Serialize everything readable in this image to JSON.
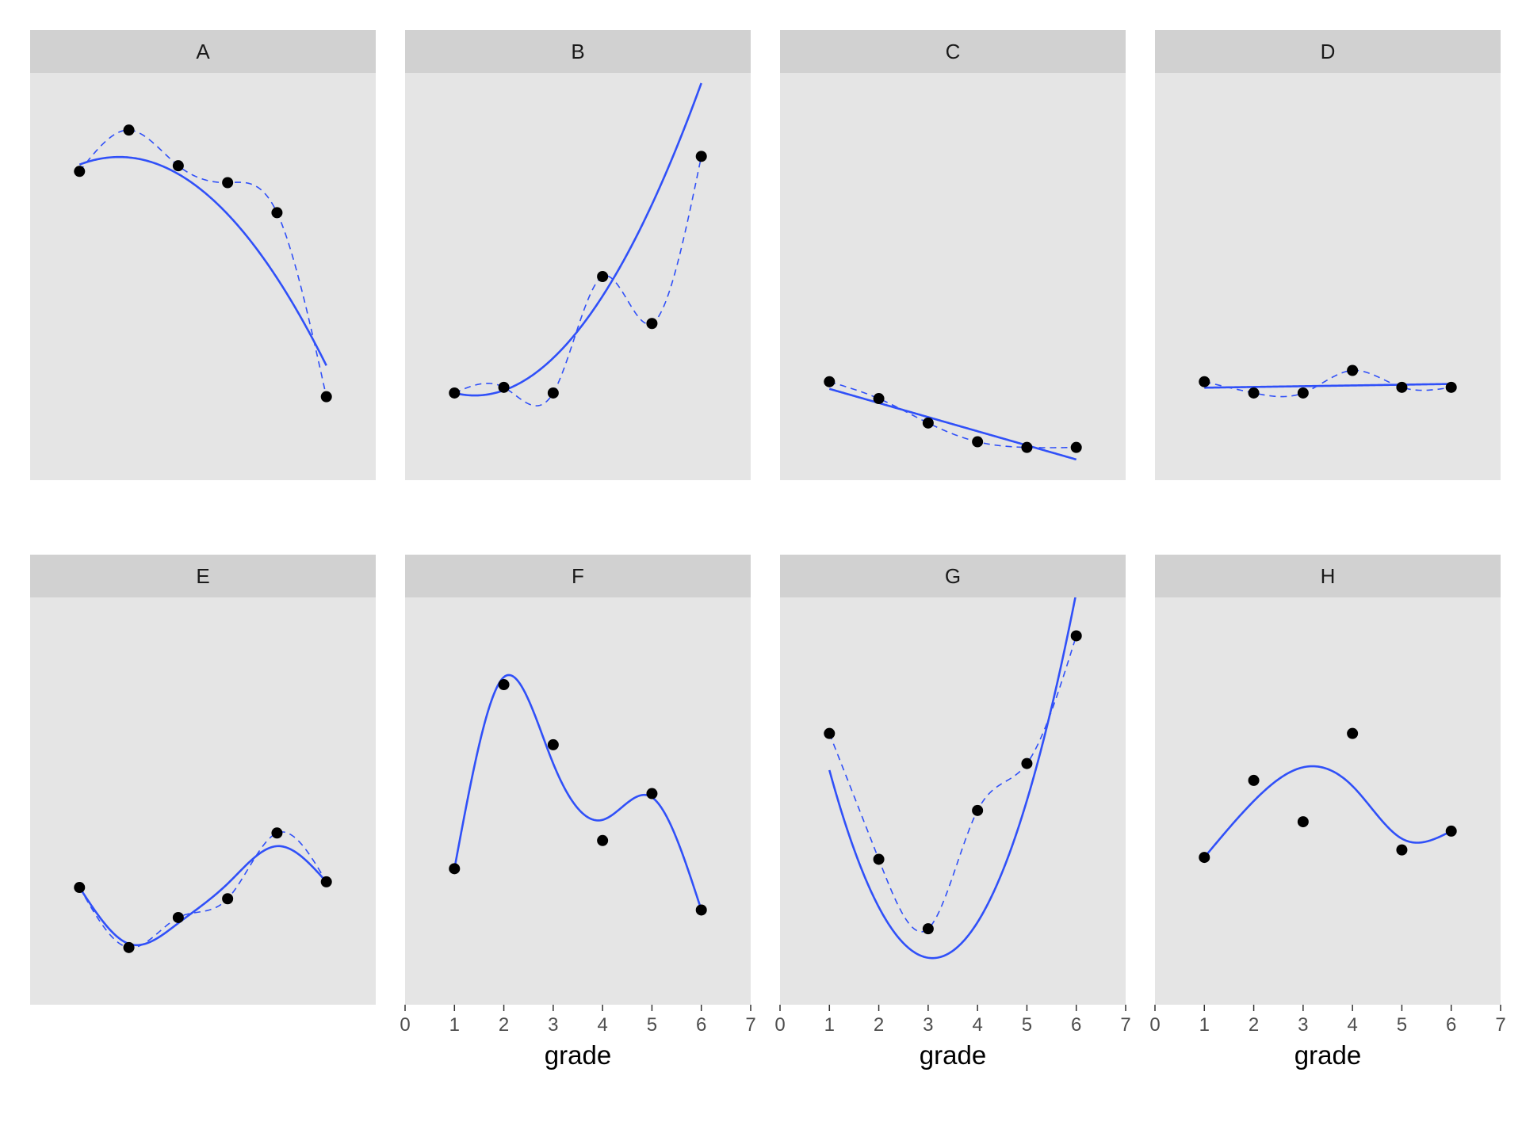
{
  "chart_data": {
    "type": "scatter",
    "layout": "facet-grid",
    "rows": 2,
    "cols": 4,
    "xlabel": "grade",
    "ylabel": "",
    "xlim": [
      0,
      7
    ],
    "x_ticks": [
      0,
      1,
      2,
      3,
      4,
      5,
      6,
      7
    ],
    "ylim": [
      0,
      100
    ],
    "colors": {
      "panel_bg": "#e5e5e5",
      "strip_bg": "#d1d1d1",
      "point": "#000000",
      "fit_line": "#3050f8",
      "tick": "#333333"
    },
    "panels": [
      {
        "label": "A",
        "x": [
          1,
          2,
          3,
          4,
          5,
          6
        ],
        "y": [
          78,
          89,
          79.5,
          75,
          67,
          18
        ],
        "solid": {
          "type": "poly",
          "coef": [
            71.6,
            11.35,
            -3.15
          ]
        },
        "dashed": {
          "type": "interp"
        }
      },
      {
        "label": "B",
        "x": [
          1,
          2,
          3,
          4,
          5,
          6
        ],
        "y": [
          19,
          20.5,
          19,
          50,
          37.5,
          82
        ],
        "solid": {
          "type": "poly",
          "coef": [
            26.2,
            -11.15,
            3.95
          ]
        },
        "dashed": {
          "type": "interp"
        }
      },
      {
        "label": "C",
        "x": [
          1,
          2,
          3,
          4,
          5,
          6
        ],
        "y": [
          22,
          17.5,
          11,
          6,
          4.5,
          4.5
        ],
        "solid": {
          "type": "poly",
          "coef": [
            23.85,
            -3.76
          ]
        },
        "dashed": {
          "type": "interp"
        }
      },
      {
        "label": "D",
        "x": [
          1,
          2,
          3,
          4,
          5,
          6
        ],
        "y": [
          22,
          19,
          19,
          25,
          20.5,
          20.5
        ],
        "solid": {
          "type": "poly",
          "coef": [
            20.2,
            0.2
          ]
        },
        "dashed": {
          "type": "interp"
        }
      },
      {
        "label": "E",
        "x": [
          1,
          2,
          3,
          4,
          5,
          6
        ],
        "y": [
          27,
          11,
          19,
          24,
          41.5,
          28.5
        ],
        "solid": {
          "type": "interp",
          "ys": [
            27,
            12,
            17.5,
            28,
            38,
            28.5
          ]
        },
        "dashed": {
          "type": "interp"
        }
      },
      {
        "label": "F",
        "x": [
          1,
          2,
          3,
          4,
          5,
          6
        ],
        "y": [
          32,
          81,
          65,
          39.5,
          52,
          21
        ],
        "solid": {
          "type": "interp",
          "ys": [
            32,
            83,
            60,
            45,
            51,
            21
          ]
        },
        "dashed": null
      },
      {
        "label": "G",
        "x": [
          1,
          2,
          3,
          4,
          5,
          6
        ],
        "y": [
          68,
          34.5,
          16,
          47.5,
          60,
          94
        ],
        "solid": {
          "type": "poly",
          "coef": [
            117.66,
            -70.9,
            11.48
          ]
        },
        "dashed": {
          "type": "interp"
        }
      },
      {
        "label": "H",
        "x": [
          1,
          2,
          3,
          4,
          5,
          6
        ],
        "y": [
          35,
          55.5,
          44.5,
          68,
          37,
          42
        ],
        "solid": {
          "type": "interp",
          "ys": [
            35,
            50,
            59,
            54,
            40,
            42
          ]
        },
        "dashed": null
      }
    ]
  }
}
